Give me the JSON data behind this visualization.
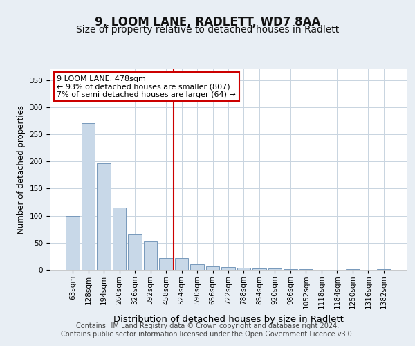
{
  "title": "9, LOOM LANE, RADLETT, WD7 8AA",
  "subtitle": "Size of property relative to detached houses in Radlett",
  "xlabel": "Distribution of detached houses by size in Radlett",
  "ylabel": "Number of detached properties",
  "categories": [
    "63sqm",
    "128sqm",
    "194sqm",
    "260sqm",
    "326sqm",
    "392sqm",
    "458sqm",
    "524sqm",
    "590sqm",
    "656sqm",
    "722sqm",
    "788sqm",
    "854sqm",
    "920sqm",
    "986sqm",
    "1052sqm",
    "1118sqm",
    "1184sqm",
    "1250sqm",
    "1316sqm",
    "1382sqm"
  ],
  "values": [
    100,
    270,
    196,
    115,
    66,
    53,
    22,
    22,
    10,
    7,
    5,
    4,
    3,
    2,
    1,
    1,
    0,
    0,
    1,
    0,
    1
  ],
  "bar_color": "#c8d8e8",
  "bar_edge_color": "#7799bb",
  "vline_x": 6.5,
  "vline_color": "#cc0000",
  "annotation_lines": [
    "9 LOOM LANE: 478sqm",
    "← 93% of detached houses are smaller (807)",
    "7% of semi-detached houses are larger (64) →"
  ],
  "annotation_box_color": "#cc0000",
  "ylim": [
    0,
    370
  ],
  "yticks": [
    0,
    50,
    100,
    150,
    200,
    250,
    300,
    350
  ],
  "bg_color": "#e8eef4",
  "plot_bg_color": "#ffffff",
  "footer": "Contains HM Land Registry data © Crown copyright and database right 2024.\nContains public sector information licensed under the Open Government Licence v3.0.",
  "title_fontsize": 12,
  "subtitle_fontsize": 10,
  "xlabel_fontsize": 9.5,
  "ylabel_fontsize": 8.5,
  "tick_fontsize": 7.5,
  "footer_fontsize": 7
}
